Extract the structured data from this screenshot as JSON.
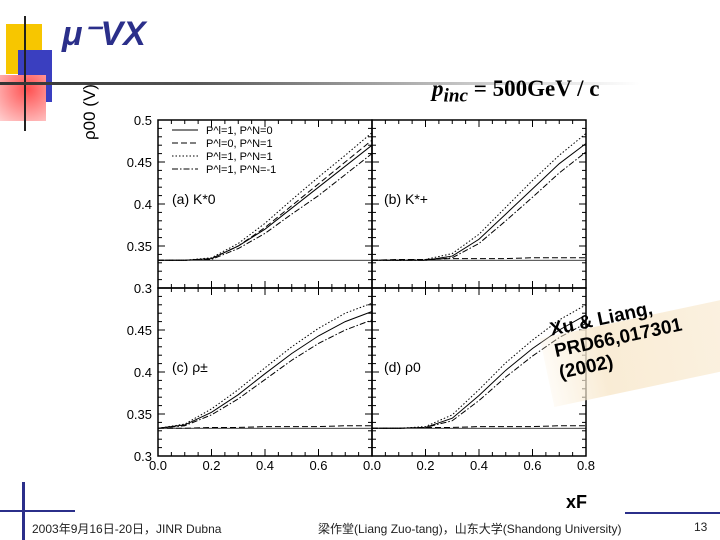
{
  "slide": {
    "title": "μ⁻VX",
    "momentum_label": "p",
    "momentum_sub": "inc",
    "momentum_value": " = 500GeV / c",
    "footer_left": "2003年9月16日-20日，JINR Dubna",
    "footer_right": "梁作堂(Liang Zuo-tang)，山东大学(Shandong University)",
    "page_number": "13",
    "reference_note": "Xu & Liang,\nPRD66,017301\n(2002)",
    "accent_color": "#2b2f8a"
  },
  "chart_data": {
    "type": "line",
    "ylabel": "ρ00 (V)",
    "xlabel": "xF",
    "xlim": [
      0.0,
      0.8
    ],
    "ylim": [
      0.3,
      0.5
    ],
    "x_ticks": [
      "0.0",
      "0.2",
      "0.4",
      "0.6",
      "0.8"
    ],
    "y_ticks": [
      "0.3",
      "0.35",
      "0.4",
      "0.45",
      "0.5"
    ],
    "legend": [
      "P^l=1, P^N=0",
      "P^l=0, P^N=1",
      "P^l=1, P^N=1",
      "P^l=1, P^N=-1"
    ],
    "legend_placement": "top-left",
    "x": [
      0.0,
      0.1,
      0.2,
      0.3,
      0.4,
      0.5,
      0.6,
      0.7,
      0.8
    ],
    "panels": [
      {
        "label": "(a) K*0",
        "series": [
          [
            0.333,
            0.333,
            0.335,
            0.35,
            0.37,
            0.395,
            0.42,
            0.445,
            0.47
          ],
          [
            0.333,
            0.333,
            0.335,
            0.35,
            0.372,
            0.398,
            0.424,
            0.45,
            0.476
          ],
          [
            0.333,
            0.333,
            0.336,
            0.353,
            0.377,
            0.405,
            0.432,
            0.458,
            0.485
          ],
          [
            0.333,
            0.333,
            0.334,
            0.347,
            0.365,
            0.388,
            0.41,
            0.435,
            0.46
          ]
        ]
      },
      {
        "label": "(b) K*+",
        "series": [
          [
            0.333,
            0.333,
            0.333,
            0.338,
            0.358,
            0.388,
            0.418,
            0.448,
            0.472
          ],
          [
            0.333,
            0.334,
            0.334,
            0.335,
            0.335,
            0.335,
            0.336,
            0.336,
            0.336
          ],
          [
            0.333,
            0.333,
            0.334,
            0.341,
            0.364,
            0.396,
            0.428,
            0.458,
            0.484
          ],
          [
            0.333,
            0.333,
            0.333,
            0.336,
            0.353,
            0.38,
            0.408,
            0.437,
            0.462
          ]
        ]
      },
      {
        "label": "(c) ρ±",
        "series": [
          [
            0.333,
            0.337,
            0.352,
            0.373,
            0.398,
            0.422,
            0.443,
            0.46,
            0.472
          ],
          [
            0.333,
            0.333,
            0.334,
            0.334,
            0.335,
            0.335,
            0.335,
            0.336,
            0.336
          ],
          [
            0.333,
            0.338,
            0.356,
            0.379,
            0.405,
            0.43,
            0.452,
            0.47,
            0.482
          ],
          [
            0.333,
            0.336,
            0.349,
            0.368,
            0.391,
            0.414,
            0.434,
            0.45,
            0.462
          ]
        ]
      },
      {
        "label": "(d) ρ0",
        "series": [
          [
            0.333,
            0.333,
            0.334,
            0.345,
            0.372,
            0.402,
            0.428,
            0.45,
            0.468
          ],
          [
            0.333,
            0.333,
            0.334,
            0.334,
            0.335,
            0.335,
            0.335,
            0.336,
            0.336
          ],
          [
            0.333,
            0.333,
            0.335,
            0.349,
            0.379,
            0.411,
            0.438,
            0.462,
            0.48
          ],
          [
            0.333,
            0.333,
            0.334,
            0.342,
            0.366,
            0.394,
            0.419,
            0.441,
            0.458
          ]
        ]
      }
    ],
    "reference_line": 0.333
  }
}
